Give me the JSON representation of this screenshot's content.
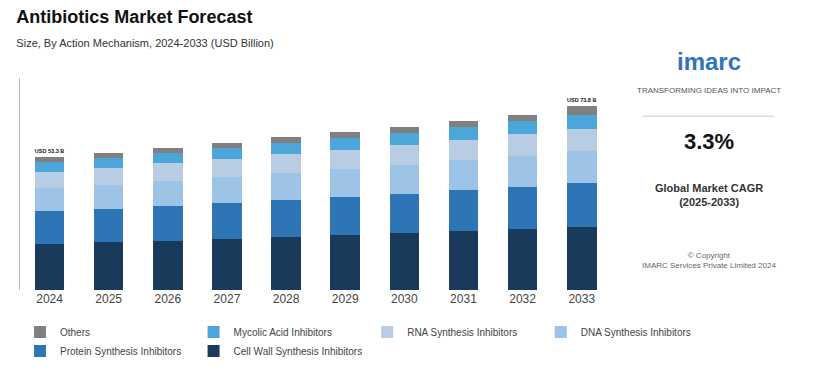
{
  "chart_data": {
    "type": "bar",
    "stacked": true,
    "title": "Antibiotics Market Forecast",
    "subtitle": "Size, By Action Mechanism, 2024-2033 (USD Billion)",
    "categories": [
      2024,
      2025,
      2026,
      2027,
      2028,
      2029,
      2030,
      2031,
      2032,
      2033
    ],
    "series": [
      {
        "name": "Cell Wall Synthesis Inhibitors",
        "color": "#1a3a5c",
        "values": [
          18.5,
          19.1,
          19.8,
          20.5,
          21.2,
          21.9,
          22.7,
          23.5,
          24.3,
          25.2
        ]
      },
      {
        "name": "Protein Synthesis Inhibitors",
        "color": "#2e75b6",
        "values": [
          13.0,
          13.4,
          13.9,
          14.4,
          14.9,
          15.4,
          15.9,
          16.5,
          17.1,
          17.7
        ]
      },
      {
        "name": "DNA Synthesis Inhibitors",
        "color": "#9dc3e6",
        "values": [
          9.5,
          9.8,
          10.2,
          10.5,
          10.9,
          11.3,
          11.7,
          12.1,
          12.5,
          13.0
        ]
      },
      {
        "name": "RNA Synthesis Inhibitors",
        "color": "#b8cce4",
        "values": [
          6.5,
          6.7,
          6.9,
          7.2,
          7.4,
          7.7,
          7.9,
          8.2,
          8.5,
          8.8
        ]
      },
      {
        "name": "Mycolic Acid Inhibitors",
        "color": "#4da6d9",
        "values": [
          4.0,
          4.1,
          4.3,
          4.4,
          4.6,
          4.7,
          4.9,
          5.1,
          5.2,
          5.4
        ]
      },
      {
        "name": "Others",
        "color": "#808080",
        "values": [
          1.8,
          1.9,
          2.0,
          2.1,
          2.2,
          2.3,
          2.4,
          2.5,
          2.6,
          3.7
        ]
      }
    ],
    "ylim": [
      0,
      85
    ],
    "tick_labels": "x",
    "grid": false,
    "legend": "bottom",
    "annotations": [
      {
        "x": 2024,
        "text": "USD 53.3 B"
      },
      {
        "x": 2033,
        "text": "USD 73.8 B"
      },
      {
        "text": "imarc"
      },
      {
        "text": "TRANSFORMING IDEAS INTO IMPACT"
      },
      {
        "text": "3.3%"
      },
      {
        "text": "Global Market CAGR\n(2025-2033)"
      },
      {
        "text": "© Copyright\nIMARC Services Private Limited 2024"
      }
    ]
  }
}
